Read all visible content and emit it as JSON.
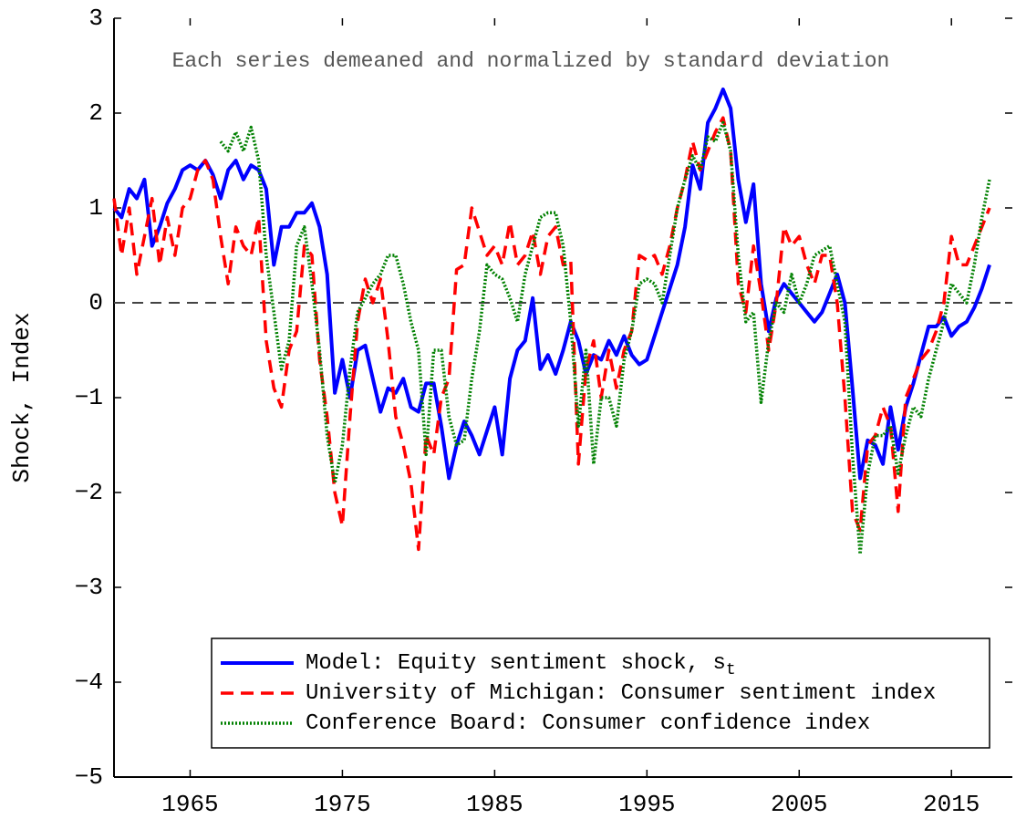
{
  "chart_data": {
    "type": "line",
    "annotation": "Each series demeaned and normalized by standard deviation",
    "y_label": "Shock, Index",
    "xlim": [
      1960,
      2019
    ],
    "xticks": [
      1965,
      1975,
      1985,
      1995,
      2005,
      2015
    ],
    "ylim": [
      -5,
      3
    ],
    "yticks": [
      {
        "value": -5,
        "label": "−5"
      },
      {
        "value": -4,
        "label": "−4"
      },
      {
        "value": -3,
        "label": "−3"
      },
      {
        "value": -2,
        "label": "−2"
      },
      {
        "value": -1,
        "label": "−1"
      },
      0,
      1,
      2,
      3
    ],
    "hline": 0,
    "legend": "lower right",
    "x": [
      1960,
      1960.5,
      1961,
      1961.5,
      1962,
      1962.5,
      1963,
      1963.5,
      1964,
      1964.5,
      1965,
      1965.5,
      1966,
      1966.5,
      1967,
      1967.5,
      1968,
      1968.5,
      1969,
      1969.5,
      1970,
      1970.5,
      1971,
      1971.5,
      1972,
      1972.5,
      1973,
      1973.5,
      1974,
      1974.5,
      1975,
      1975.5,
      1976,
      1976.5,
      1977,
      1977.5,
      1978,
      1978.5,
      1979,
      1979.5,
      1980,
      1980.5,
      1981,
      1981.5,
      1982,
      1982.5,
      1983,
      1983.5,
      1984,
      1984.5,
      1985,
      1985.5,
      1986,
      1986.5,
      1987,
      1987.5,
      1988,
      1988.5,
      1989,
      1989.5,
      1990,
      1990.5,
      1991,
      1991.5,
      1992,
      1992.5,
      1993,
      1993.5,
      1994,
      1994.5,
      1995,
      1995.5,
      1996,
      1996.5,
      1997,
      1997.5,
      1998,
      1998.5,
      1999,
      1999.5,
      2000,
      2000.5,
      2001,
      2001.5,
      2002,
      2002.5,
      2003,
      2003.5,
      2004,
      2004.5,
      2005,
      2005.5,
      2006,
      2006.5,
      2007,
      2007.5,
      2008,
      2008.5,
      2009,
      2009.5,
      2010,
      2010.5,
      2011,
      2011.5,
      2012,
      2012.5,
      2013,
      2013.5,
      2014,
      2014.5,
      2015,
      2015.5,
      2016,
      2016.5,
      2017,
      2017.5
    ],
    "series": [
      {
        "name": "Model: Equity sentiment shock, s",
        "subscript": "t",
        "color": "#0000ff",
        "linestyle": "solid",
        "values": [
          1.0,
          0.9,
          1.2,
          1.1,
          1.3,
          0.6,
          0.8,
          1.05,
          1.2,
          1.4,
          1.45,
          1.4,
          1.5,
          1.35,
          1.1,
          1.4,
          1.5,
          1.3,
          1.45,
          1.4,
          1.2,
          0.4,
          0.8,
          0.8,
          0.95,
          0.95,
          1.05,
          0.8,
          0.3,
          -0.95,
          -0.6,
          -1.0,
          -0.5,
          -0.45,
          -0.8,
          -1.15,
          -0.9,
          -0.95,
          -0.8,
          -1.1,
          -1.15,
          -0.85,
          -0.85,
          -1.3,
          -1.85,
          -1.5,
          -1.25,
          -1.4,
          -1.6,
          -1.35,
          -1.1,
          -1.6,
          -0.8,
          -0.5,
          -0.4,
          0.05,
          -0.7,
          -0.55,
          -0.75,
          -0.5,
          -0.2,
          -0.4,
          -0.75,
          -0.55,
          -0.6,
          -0.4,
          -0.55,
          -0.35,
          -0.55,
          -0.65,
          -0.6,
          -0.35,
          -0.1,
          0.15,
          0.4,
          0.8,
          1.45,
          1.2,
          1.9,
          2.05,
          2.25,
          2.05,
          1.3,
          0.85,
          1.25,
          0.2,
          -0.3,
          0.05,
          0.2,
          0.1,
          0.0,
          -0.1,
          -0.2,
          -0.1,
          0.1,
          0.3,
          0.0,
          -0.9,
          -1.85,
          -1.45,
          -1.5,
          -1.7,
          -1.1,
          -1.55,
          -1.1,
          -0.85,
          -0.55,
          -0.25,
          -0.25,
          -0.15,
          -0.35,
          -0.25,
          -0.2,
          -0.05,
          0.15,
          0.4
        ]
      },
      {
        "name": "University of Michigan: Consumer sentiment index",
        "color": "#ff0000",
        "linestyle": "dashed",
        "values": [
          1.1,
          0.5,
          1.0,
          0.3,
          0.7,
          1.1,
          0.4,
          0.9,
          0.5,
          1.0,
          1.1,
          1.4,
          1.5,
          1.3,
          0.7,
          0.2,
          0.8,
          0.6,
          0.5,
          0.9,
          -0.4,
          -0.9,
          -1.1,
          -0.5,
          -0.3,
          0.6,
          0.5,
          -0.6,
          -1.2,
          -2.0,
          -2.35,
          -1.2,
          -0.2,
          0.25,
          0.0,
          0.25,
          -0.4,
          -1.2,
          -1.5,
          -1.9,
          -2.6,
          -1.4,
          -1.6,
          -1.0,
          -0.8,
          0.35,
          0.4,
          1.0,
          0.75,
          0.5,
          0.6,
          0.4,
          0.85,
          0.4,
          0.5,
          0.75,
          0.3,
          0.7,
          0.8,
          0.4,
          0.45,
          -1.7,
          -0.7,
          -0.4,
          -1.0,
          -0.5,
          -0.9,
          -0.5,
          -0.3,
          0.5,
          0.45,
          0.5,
          0.3,
          0.6,
          1.0,
          1.3,
          1.7,
          1.4,
          1.6,
          1.8,
          1.95,
          1.6,
          0.2,
          -0.1,
          0.6,
          0.1,
          -0.5,
          0.0,
          0.8,
          0.6,
          0.7,
          0.4,
          0.2,
          0.5,
          0.5,
          0.0,
          -1.0,
          -2.2,
          -2.4,
          -1.5,
          -1.4,
          -1.1,
          -1.3,
          -2.2,
          -1.0,
          -0.8,
          -0.6,
          -0.5,
          -0.3,
          0.0,
          0.7,
          0.4,
          0.4,
          0.6,
          0.8,
          1.0
        ]
      },
      {
        "name": "Conference Board: Consumer confidence index",
        "color": "#008000",
        "linestyle": "dotted",
        "values": [
          null,
          null,
          null,
          null,
          null,
          null,
          null,
          null,
          null,
          null,
          null,
          null,
          null,
          null,
          1.7,
          1.6,
          1.8,
          1.6,
          1.85,
          1.5,
          0.5,
          -0.1,
          -0.7,
          -0.4,
          0.6,
          0.8,
          0.2,
          -0.5,
          -1.4,
          -1.9,
          -1.5,
          -0.7,
          -0.1,
          0.05,
          0.2,
          0.3,
          0.5,
          0.5,
          0.2,
          -0.2,
          -0.5,
          -1.6,
          -0.5,
          -0.5,
          -1.2,
          -1.5,
          -1.45,
          -0.8,
          -0.3,
          0.4,
          0.3,
          0.25,
          0.05,
          -0.2,
          0.3,
          0.6,
          0.9,
          0.95,
          0.95,
          0.6,
          -0.2,
          -1.3,
          -0.5,
          -1.7,
          -1.0,
          -1.0,
          -1.3,
          -0.6,
          -0.3,
          0.2,
          0.25,
          0.2,
          0.0,
          0.5,
          1.0,
          1.3,
          1.55,
          1.4,
          1.75,
          1.7,
          1.9,
          1.6,
          0.5,
          -0.2,
          -0.1,
          -1.05,
          -0.4,
          0.0,
          -0.1,
          0.3,
          0.0,
          0.2,
          0.5,
          0.55,
          0.6,
          0.2,
          -0.2,
          -1.6,
          -2.65,
          -1.8,
          -1.4,
          -1.4,
          -1.3,
          -1.8,
          -1.4,
          -1.1,
          -1.2,
          -0.8,
          -0.5,
          -0.2,
          0.2,
          0.1,
          0.0,
          0.4,
          0.9,
          1.3
        ]
      }
    ]
  }
}
